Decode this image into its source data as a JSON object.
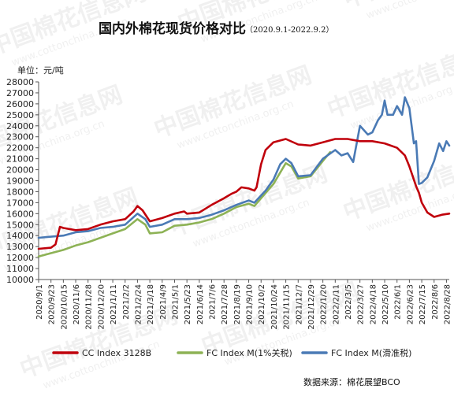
{
  "header": {
    "title": "国内外棉花现货价格对比",
    "subtitle": "（2020.9.1-2022.9.2）"
  },
  "unit_label": "单位：元/吨",
  "source_label": "数据来源：棉花展望BCO",
  "watermark": {
    "cn": "中国棉花信息网",
    "en": "www.cottonchina.org.cn"
  },
  "colors": {
    "cc_index": "#c0000b",
    "fc_index_1pct": "#8db255",
    "fc_index_sliding": "#4a7ab5",
    "axis": "#555555"
  },
  "chart_data": {
    "type": "line",
    "title": "国内外棉花现货价格对比",
    "subtitle": "（2020.9.1-2022.9.2）",
    "ylabel": "单位：元/吨",
    "ylim": [
      10000,
      28000
    ],
    "ytick_step": 1000,
    "yticks": [
      "10000",
      "11000",
      "12000",
      "13000",
      "14000",
      "15000",
      "16000",
      "17000",
      "18000",
      "19000",
      "20000",
      "21000",
      "22000",
      "23000",
      "24000",
      "25000",
      "26000",
      "27000",
      "28000"
    ],
    "xlim": [
      "2020-09-01",
      "2022-09-02"
    ],
    "x_tick_labels": [
      "2020/9/1",
      "2020/9/23",
      "2020/10/15",
      "2020/11/6",
      "2020/11/28",
      "2020/12/20",
      "2021/1/11",
      "2021/2/2",
      "2021/2/24",
      "2021/3/18",
      "2021/4/9",
      "2021/5/1",
      "2021/5/23",
      "2021/6/14",
      "2021/7/6",
      "2021/7/28",
      "2021/8/19",
      "2021/9/10",
      "2021/10/2",
      "2021/10/24",
      "2021/11/15",
      "2021/12/7",
      "2021/12/29",
      "2022/1/20",
      "2022/2/11",
      "2022/3/5",
      "2022/3/27",
      "2022/4/18",
      "2022/5/10",
      "2022/6/1",
      "2022/6/23",
      "2022/7/15",
      "2022/8/6",
      "2022/8/28"
    ],
    "grid": false,
    "legend_position": "bottom",
    "series": [
      {
        "name": "CC Index 3128B",
        "color": "#c0000b",
        "points": [
          [
            "2020-09-01",
            12800
          ],
          [
            "2020-09-23",
            12900
          ],
          [
            "2020-10-01",
            13200
          ],
          [
            "2020-10-09",
            14800
          ],
          [
            "2020-10-15",
            14700
          ],
          [
            "2020-11-06",
            14500
          ],
          [
            "2020-11-28",
            14600
          ],
          [
            "2020-12-20",
            15000
          ],
          [
            "2021-01-11",
            15300
          ],
          [
            "2021-02-02",
            15500
          ],
          [
            "2021-02-17",
            16200
          ],
          [
            "2021-02-24",
            16700
          ],
          [
            "2021-03-05",
            16300
          ],
          [
            "2021-03-18",
            15300
          ],
          [
            "2021-04-09",
            15600
          ],
          [
            "2021-05-01",
            16000
          ],
          [
            "2021-05-18",
            16200
          ],
          [
            "2021-05-23",
            16000
          ],
          [
            "2021-06-14",
            16100
          ],
          [
            "2021-07-06",
            16800
          ],
          [
            "2021-07-28",
            17400
          ],
          [
            "2021-08-10",
            17800
          ],
          [
            "2021-08-19",
            18000
          ],
          [
            "2021-08-28",
            18400
          ],
          [
            "2021-09-10",
            18300
          ],
          [
            "2021-09-20",
            18100
          ],
          [
            "2021-09-24",
            18400
          ],
          [
            "2021-10-02",
            20500
          ],
          [
            "2021-10-10",
            21800
          ],
          [
            "2021-10-24",
            22500
          ],
          [
            "2021-11-15",
            22800
          ],
          [
            "2021-12-07",
            22300
          ],
          [
            "2021-12-29",
            22200
          ],
          [
            "2022-01-20",
            22500
          ],
          [
            "2022-02-11",
            22800
          ],
          [
            "2022-03-05",
            22800
          ],
          [
            "2022-03-27",
            22600
          ],
          [
            "2022-04-18",
            22600
          ],
          [
            "2022-05-10",
            22400
          ],
          [
            "2022-06-01",
            22000
          ],
          [
            "2022-06-15",
            21300
          ],
          [
            "2022-06-23",
            20300
          ],
          [
            "2022-07-05",
            18500
          ],
          [
            "2022-07-10",
            17900
          ],
          [
            "2022-07-15",
            17000
          ],
          [
            "2022-07-25",
            16100
          ],
          [
            "2022-08-06",
            15700
          ],
          [
            "2022-08-20",
            15900
          ],
          [
            "2022-09-02",
            16000
          ]
        ]
      },
      {
        "name": "FC Index M(1%关税)",
        "color": "#8db255",
        "points": [
          [
            "2020-09-01",
            12100
          ],
          [
            "2020-09-23",
            12400
          ],
          [
            "2020-10-15",
            12700
          ],
          [
            "2020-11-06",
            13100
          ],
          [
            "2020-11-28",
            13400
          ],
          [
            "2020-12-20",
            13800
          ],
          [
            "2021-01-11",
            14200
          ],
          [
            "2021-02-02",
            14600
          ],
          [
            "2021-02-24",
            15500
          ],
          [
            "2021-03-10",
            15000
          ],
          [
            "2021-03-18",
            14200
          ],
          [
            "2021-04-09",
            14300
          ],
          [
            "2021-05-01",
            14900
          ],
          [
            "2021-05-23",
            15000
          ],
          [
            "2021-06-14",
            15200
          ],
          [
            "2021-07-06",
            15500
          ],
          [
            "2021-07-28",
            16000
          ],
          [
            "2021-08-19",
            16600
          ],
          [
            "2021-09-10",
            16900
          ],
          [
            "2021-09-20",
            16700
          ],
          [
            "2021-10-24",
            18700
          ],
          [
            "2021-11-15",
            20600
          ],
          [
            "2021-11-25",
            20300
          ],
          [
            "2021-12-07",
            19200
          ],
          [
            "2021-12-29",
            19400
          ],
          [
            "2022-01-20",
            20800
          ],
          [
            "2022-02-02",
            21600
          ]
        ]
      },
      {
        "name": "FC Index M(滑准税)",
        "color": "#4a7ab5",
        "points": [
          [
            "2020-09-01",
            13800
          ],
          [
            "2020-09-23",
            13900
          ],
          [
            "2020-10-15",
            14000
          ],
          [
            "2020-11-06",
            14300
          ],
          [
            "2020-11-28",
            14400
          ],
          [
            "2020-12-20",
            14700
          ],
          [
            "2021-01-11",
            14800
          ],
          [
            "2021-02-02",
            15000
          ],
          [
            "2021-02-24",
            16000
          ],
          [
            "2021-03-10",
            15500
          ],
          [
            "2021-03-18",
            14800
          ],
          [
            "2021-04-09",
            15000
          ],
          [
            "2021-05-01",
            15500
          ],
          [
            "2021-05-23",
            15500
          ],
          [
            "2021-06-14",
            15600
          ],
          [
            "2021-07-06",
            15900
          ],
          [
            "2021-07-28",
            16300
          ],
          [
            "2021-08-19",
            16800
          ],
          [
            "2021-09-10",
            17200
          ],
          [
            "2021-09-20",
            17000
          ],
          [
            "2021-10-10",
            18100
          ],
          [
            "2021-10-24",
            19100
          ],
          [
            "2021-11-05",
            20500
          ],
          [
            "2021-11-15",
            21000
          ],
          [
            "2021-11-25",
            20600
          ],
          [
            "2021-12-07",
            19400
          ],
          [
            "2021-12-29",
            19500
          ],
          [
            "2022-01-20",
            21000
          ],
          [
            "2022-02-11",
            21800
          ],
          [
            "2022-02-22",
            21300
          ],
          [
            "2022-03-05",
            21500
          ],
          [
            "2022-03-15",
            20700
          ],
          [
            "2022-03-27",
            24000
          ],
          [
            "2022-04-10",
            23200
          ],
          [
            "2022-04-18",
            23400
          ],
          [
            "2022-04-28",
            24500
          ],
          [
            "2022-05-05",
            25000
          ],
          [
            "2022-05-10",
            26300
          ],
          [
            "2022-05-15",
            25000
          ],
          [
            "2022-05-25",
            25000
          ],
          [
            "2022-06-01",
            25800
          ],
          [
            "2022-06-10",
            25000
          ],
          [
            "2022-06-15",
            26600
          ],
          [
            "2022-06-23",
            25600
          ],
          [
            "2022-07-01",
            22400
          ],
          [
            "2022-07-05",
            22600
          ],
          [
            "2022-07-10",
            18700
          ],
          [
            "2022-07-15",
            18800
          ],
          [
            "2022-07-25",
            19300
          ],
          [
            "2022-08-06",
            20800
          ],
          [
            "2022-08-15",
            22400
          ],
          [
            "2022-08-22",
            21700
          ],
          [
            "2022-08-28",
            22600
          ],
          [
            "2022-09-02",
            22200
          ]
        ]
      }
    ]
  }
}
